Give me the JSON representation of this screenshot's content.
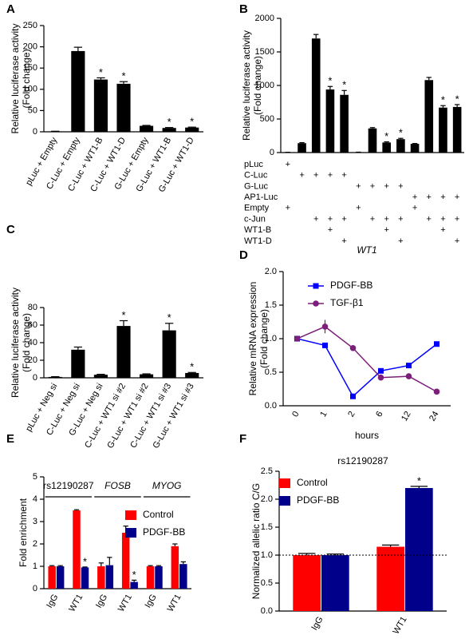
{
  "chart_data": [
    {
      "panel": "A",
      "type": "bar",
      "ylabel": [
        "Relative luciferase activity",
        "(Fold change)"
      ],
      "categories": [
        "pLuc + Empty",
        "C-Luc + Empty",
        "C-Luc + WT1-B",
        "C-Luc + WT1-D",
        "G-Luc + Empty",
        "G-Luc + WT1-B",
        "G-Luc + WT1-D"
      ],
      "values": [
        1,
        190,
        123,
        113,
        14,
        9,
        10
      ],
      "errors": [
        0.3,
        9,
        4,
        5,
        1,
        1,
        1
      ],
      "color": "#000000",
      "ylim": [
        0,
        250
      ],
      "yticks": [
        0,
        50,
        100,
        150,
        200,
        250
      ],
      "star": "*",
      "starred": [
        2,
        3,
        5,
        6
      ]
    },
    {
      "panel": "B",
      "type": "bar",
      "ylabel": [
        "Relative luciferase activity",
        "(Fold change)"
      ],
      "values": [
        3,
        140,
        1700,
        940,
        860,
        5,
        360,
        150,
        200,
        130,
        1080,
        670,
        680
      ],
      "errors": [
        1,
        8,
        60,
        45,
        65,
        1,
        12,
        10,
        12,
        5,
        40,
        30,
        35
      ],
      "color": "#000000",
      "ylim": [
        0,
        2000
      ],
      "yticks": [
        0,
        500,
        1000,
        1500,
        2000
      ],
      "star": "*",
      "starred": [
        3,
        4,
        7,
        8,
        11,
        12
      ],
      "table": {
        "rows": [
          {
            "label": "pLuc",
            "cells": [
              "+",
              null,
              null,
              null,
              null,
              null,
              null,
              null,
              null,
              null,
              null,
              null,
              null
            ]
          },
          {
            "label": "C-Luc",
            "cells": [
              null,
              "+",
              "+",
              "+",
              "+",
              null,
              null,
              null,
              null,
              null,
              null,
              null,
              null
            ]
          },
          {
            "label": "G-Luc",
            "cells": [
              null,
              null,
              null,
              null,
              null,
              "+",
              "+",
              "+",
              "+",
              null,
              null,
              null,
              null
            ]
          },
          {
            "label": "AP1-Luc",
            "cells": [
              null,
              null,
              null,
              null,
              null,
              null,
              null,
              null,
              null,
              "+",
              "+",
              "+",
              "+"
            ]
          },
          {
            "label": "Empty",
            "cells": [
              "+",
              null,
              null,
              null,
              null,
              "+",
              null,
              null,
              null,
              "+",
              null,
              null,
              null
            ]
          },
          {
            "label": "c-Jun",
            "cells": [
              null,
              null,
              "+",
              "+",
              "+",
              null,
              "+",
              "+",
              "+",
              null,
              "+",
              "+",
              "+"
            ]
          },
          {
            "label": "WT1-B",
            "cells": [
              null,
              null,
              null,
              "+",
              null,
              null,
              null,
              "+",
              null,
              null,
              null,
              "+",
              null
            ]
          },
          {
            "label": "WT1-D",
            "cells": [
              null,
              null,
              null,
              null,
              "+",
              null,
              null,
              null,
              "+",
              null,
              null,
              null,
              "+"
            ]
          }
        ]
      }
    },
    {
      "panel": "C",
      "type": "bar",
      "ylabel": [
        "Relative luciferase activity",
        "(Fold  change)"
      ],
      "categories": [
        "pLuc + Neg si",
        "C-Luc + Neg si",
        "G-Luc + Neg si",
        "C-Luc + WT1 si #2",
        "G-Luc + WT1 si #2",
        "C-Luc + WT1 si #3",
        "G-Luc + WT1 si #3"
      ],
      "values": [
        1,
        32,
        3.5,
        59,
        4,
        54,
        5.5
      ],
      "errors": [
        0.3,
        3,
        0.5,
        6,
        0.5,
        8,
        0.6
      ],
      "color": "#000000",
      "ylim": [
        0,
        80
      ],
      "yticks": [
        0,
        20,
        40,
        60,
        80
      ],
      "star": "*",
      "starred": [
        3,
        5,
        6
      ]
    },
    {
      "panel": "D",
      "type": "line",
      "title": "WT1",
      "ylabel": [
        "Relative mRNA expression",
        "(Fold change)"
      ],
      "xlabel": "hours",
      "categories": [
        "0",
        "1",
        "2",
        "6",
        "12",
        "24"
      ],
      "series": [
        {
          "name": "PDGF-BB",
          "color": "#0000ff",
          "marker": "square",
          "values": [
            1.0,
            0.9,
            0.14,
            0.52,
            0.6,
            0.92
          ],
          "errors": [
            0.02,
            0.02,
            0.02,
            0.03,
            0.02,
            0.03
          ]
        },
        {
          "name": "TGF-β1",
          "color": "#7b1f7b",
          "marker": "circle",
          "values": [
            1.0,
            1.18,
            0.86,
            0.42,
            0.44,
            0.21
          ],
          "errors": [
            0.02,
            0.1,
            0.02,
            0.02,
            0.02,
            0.02
          ]
        }
      ],
      "ylim": [
        0,
        2
      ],
      "yticks": [
        {
          "value": 0,
          "label": "0.0"
        },
        {
          "value": 0.5,
          "label": "0.5"
        },
        {
          "value": 1,
          "label": "1.0"
        },
        {
          "value": 1.5,
          "label": "1.5"
        },
        {
          "value": 2,
          "label": "2.0"
        }
      ],
      "legend": "upper right"
    },
    {
      "panel": "E",
      "type": "bar",
      "ylabel": [
        "Fold enrichment"
      ],
      "categories": [
        "IgG",
        "WT1",
        "IgG",
        "WT1",
        "IgG",
        "WT1"
      ],
      "groups": [
        "rs12190287",
        "FOSB",
        "MYOG"
      ],
      "group_italic": [
        false,
        true,
        true
      ],
      "series": [
        {
          "name": "Control",
          "color": "#ff0000",
          "values": [
            1.0,
            3.5,
            1.0,
            2.5,
            1.0,
            1.9
          ],
          "errors": [
            0.03,
            0.03,
            0.15,
            0.3,
            0.03,
            0.1
          ]
        },
        {
          "name": "PDGF-BB",
          "color": "#00008b",
          "values": [
            1.0,
            0.95,
            1.05,
            0.3,
            1.0,
            1.1
          ],
          "errors": [
            0.03,
            0.02,
            0.35,
            0.08,
            0.03,
            0.1
          ]
        }
      ],
      "ylim": [
        0,
        5
      ],
      "yticks": [
        0,
        1,
        2,
        3,
        4,
        5
      ],
      "star": "*",
      "starred": [
        [
          1,
          1
        ],
        [
          1,
          3
        ]
      ],
      "legend": "upper right"
    },
    {
      "panel": "F",
      "type": "bar",
      "title": "rs12190287",
      "ylabel": [
        "Normalized allelic ratio C/G"
      ],
      "categories": [
        "IgG",
        "WT1"
      ],
      "series": [
        {
          "name": "Control",
          "color": "#ff0000",
          "values": [
            1.0,
            1.15
          ],
          "errors": [
            0.03,
            0.03
          ]
        },
        {
          "name": "PDGF-BB",
          "color": "#00008b",
          "values": [
            1.0,
            2.2
          ],
          "errors": [
            0.02,
            0.03
          ]
        }
      ],
      "ylim": [
        0,
        2.5
      ],
      "yticks": [
        {
          "value": 0,
          "label": "0.0"
        },
        {
          "value": 0.5,
          "label": "0.5"
        },
        {
          "value": 1,
          "label": "1.0"
        },
        {
          "value": 1.5,
          "label": "1.5"
        },
        {
          "value": 2,
          "label": "2.0"
        },
        {
          "value": 2.5,
          "label": "2.5"
        }
      ],
      "refline": 1,
      "star": "*",
      "starred": [
        [
          1,
          1
        ]
      ],
      "legend": "upper left"
    }
  ]
}
